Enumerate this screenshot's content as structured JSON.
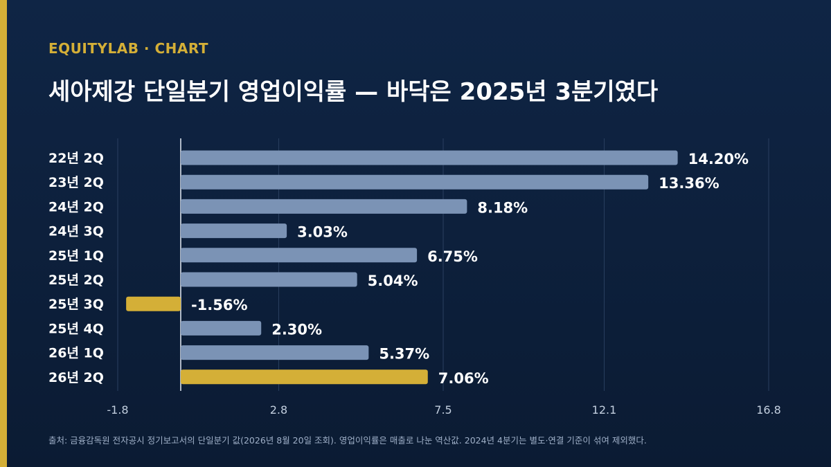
{
  "header": {
    "kicker": "EQUITYLAB · CHART",
    "title": "세아제강 단일분기 영업이익률 — 바닥은 2025년 3분기였다"
  },
  "footer": {
    "source": "출처: 금융감독원 전자공시 정기보고서의 단일분기 값(2026년 8월 20일 조회). 영업이익률은 매출로 나눈 역산값. 2024년 4분기는 별도·연결 기준이 섞여 제외했다."
  },
  "colors": {
    "background": "#0f2545",
    "accent": "#d4af37",
    "bar": "#7b93b5",
    "highlight": "#d4af37",
    "grid": "#2a3f60"
  },
  "chart_data": {
    "type": "bar",
    "orientation": "horizontal",
    "categories": [
      "22년 2Q",
      "23년 2Q",
      "24년 2Q",
      "24년 3Q",
      "25년 1Q",
      "25년 2Q",
      "25년 3Q",
      "25년 4Q",
      "26년 1Q",
      "26년 2Q"
    ],
    "values": [
      14.2,
      13.36,
      8.18,
      3.03,
      6.75,
      5.04,
      -1.56,
      2.3,
      5.37,
      7.06
    ],
    "value_labels": [
      "14.20%",
      "13.36%",
      "8.18%",
      "3.03%",
      "6.75%",
      "5.04%",
      "-1.56%",
      "2.30%",
      "5.37%",
      "7.06%"
    ],
    "highlighted": [
      "25년 3Q",
      "26년 2Q"
    ],
    "xlim": [
      -1.8,
      16.8
    ],
    "xticks": [
      -1.8,
      2.8,
      7.5,
      12.1,
      16.8
    ],
    "xtick_labels": [
      "-1.8",
      "2.8",
      "7.5",
      "12.1",
      "16.8"
    ],
    "grid": true,
    "zero_line": true
  }
}
